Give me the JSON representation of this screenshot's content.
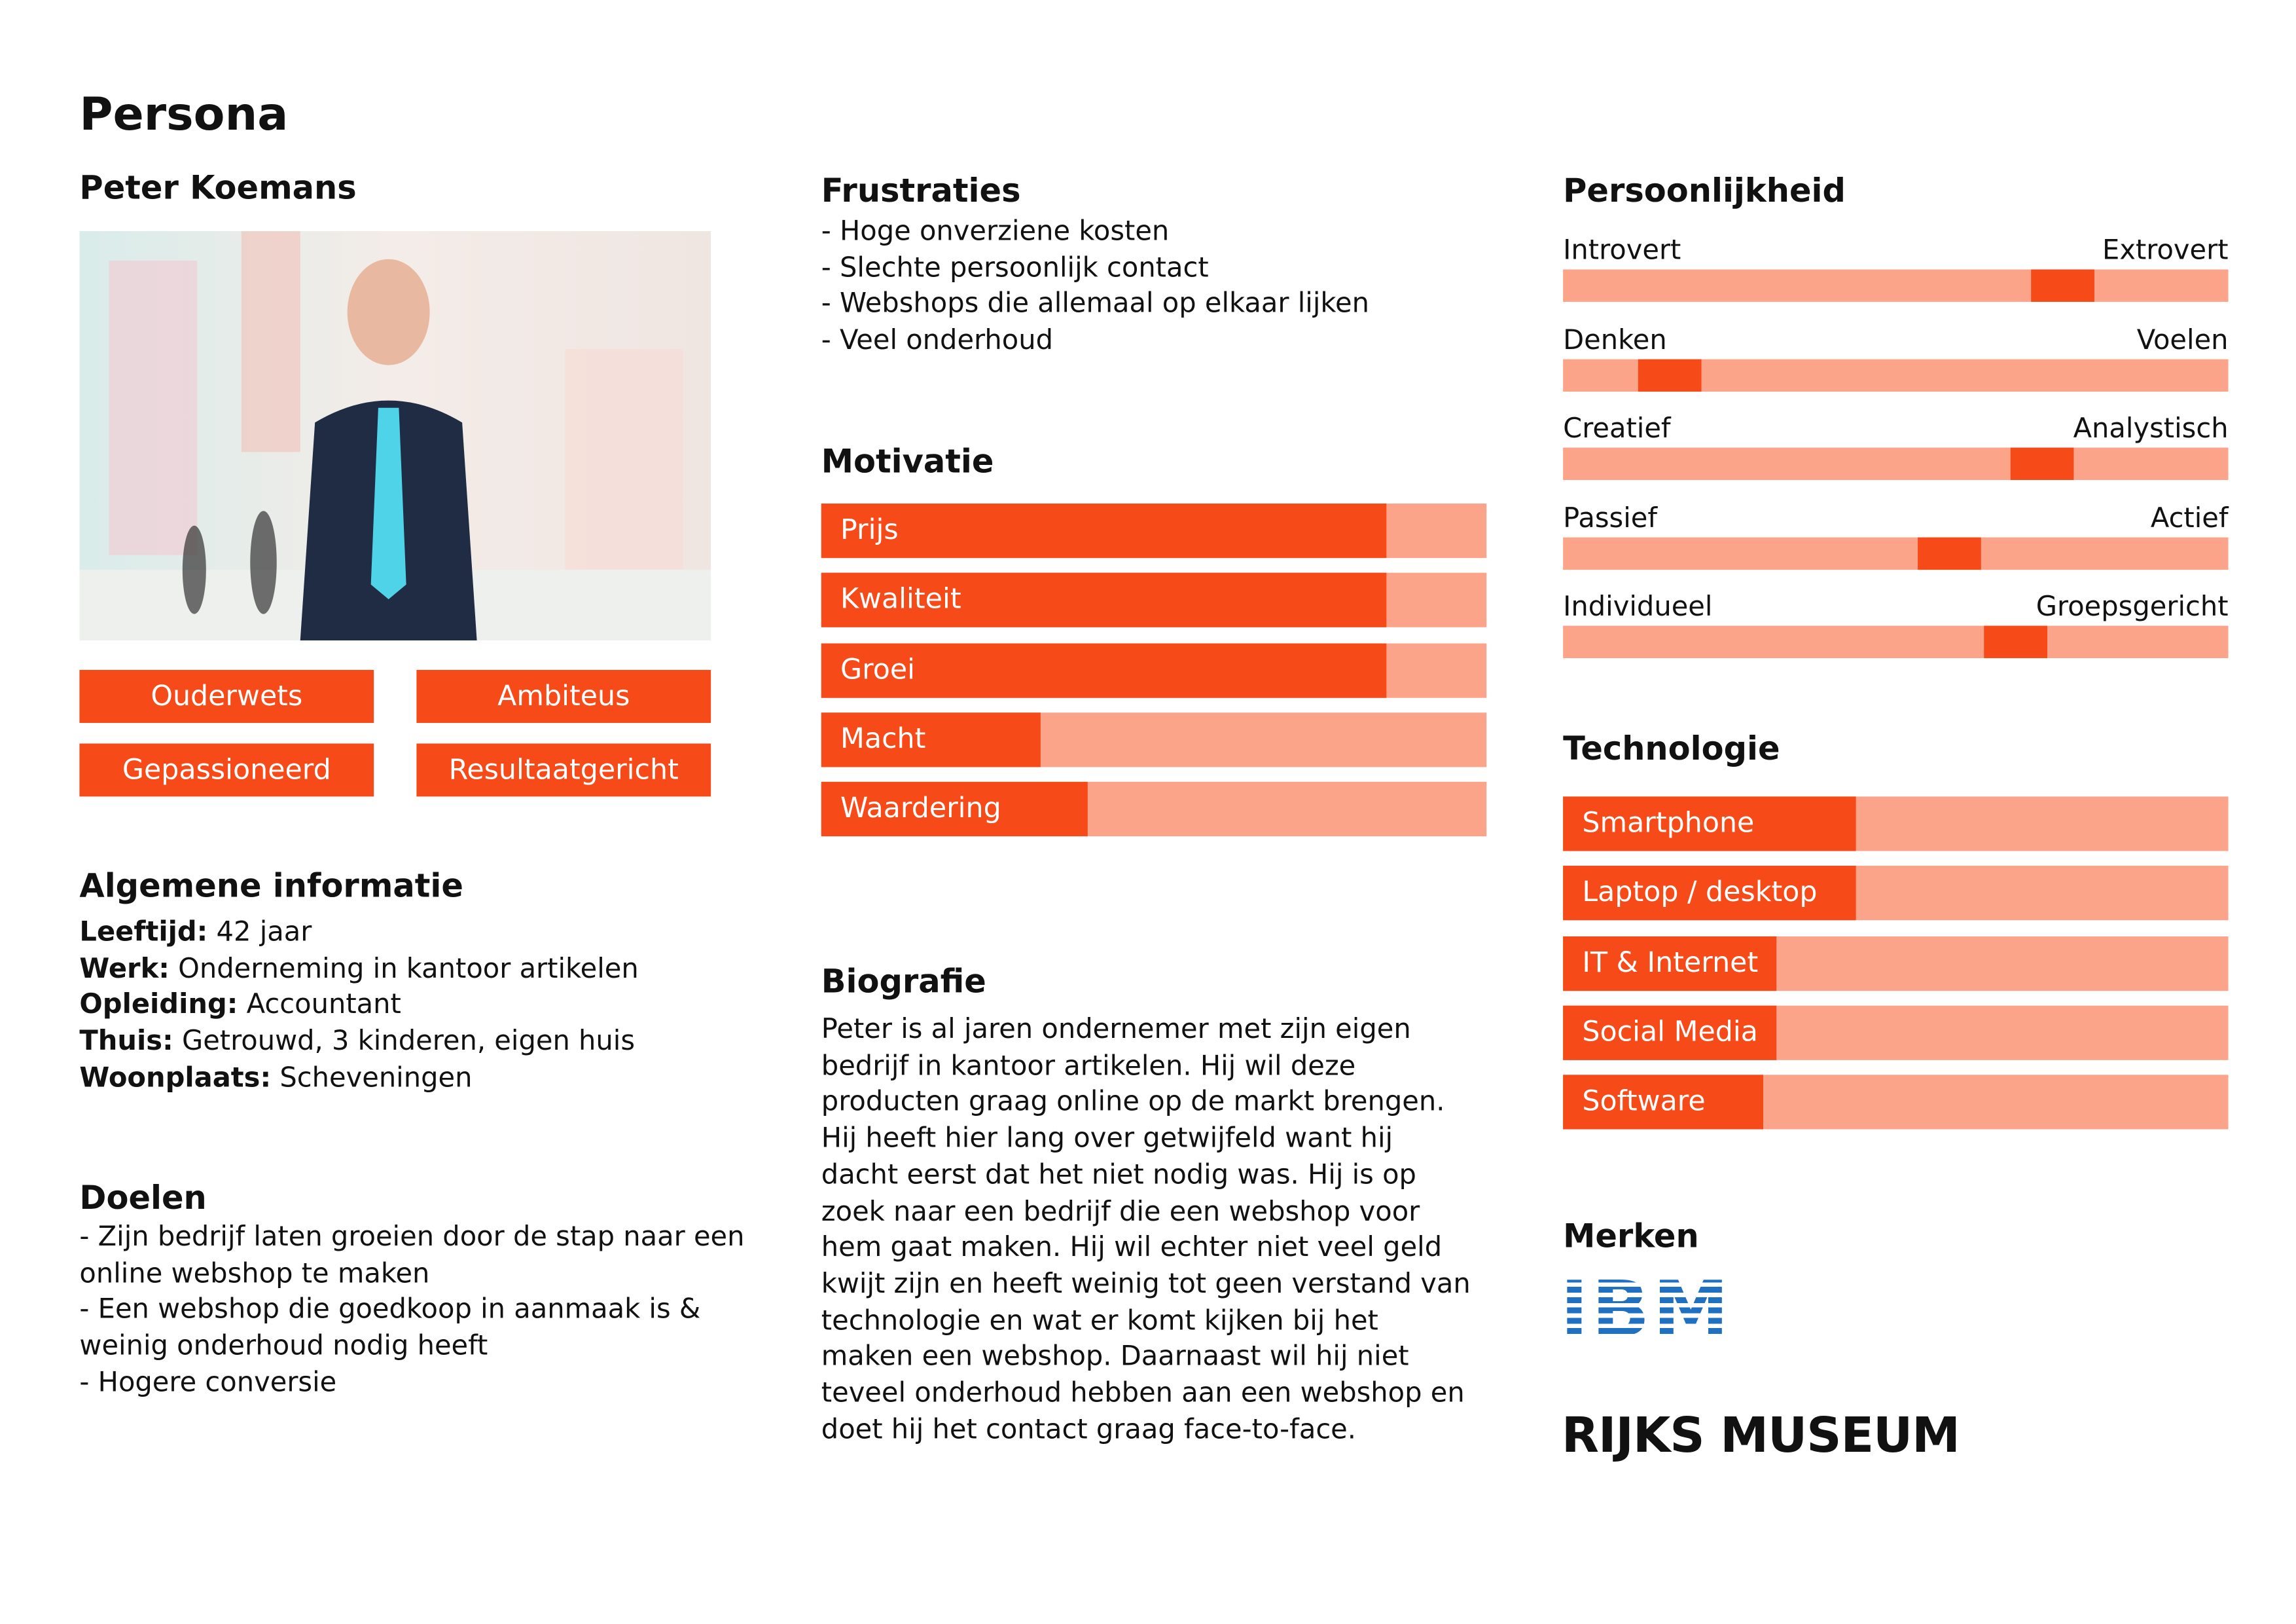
{
  "header": {
    "title": "Persona"
  },
  "profile": {
    "name": "Peter Koemans",
    "traits": [
      "Ouderwets",
      "Ambiteus",
      "Gepassioneerd",
      "Resultaatgericht"
    ]
  },
  "general_info": {
    "title": "Algemene informatie",
    "items": [
      {
        "label": "Leeftijd:",
        "value": "42 jaar"
      },
      {
        "label": "Werk:",
        "value": "Onderneming in kantoor artikelen"
      },
      {
        "label": "Opleiding:",
        "value": "Accountant"
      },
      {
        "label": "Thuis:",
        "value": "Getrouwd, 3 kinderen, eigen huis"
      },
      {
        "label": "Woonplaats:",
        "value": "Scheveningen"
      }
    ]
  },
  "goals": {
    "title": "Doelen",
    "items": [
      "- Zijn bedrijf laten groeien door de stap naar een online webshop te maken",
      "- Een webshop die goedkoop in aanmaak is & weinig onderhoud nodig heeft",
      "- Hogere conversie"
    ]
  },
  "frustrations": {
    "title": "Frustraties",
    "items": [
      "- Hoge onverziene kosten",
      "- Slechte persoonlijk contact",
      "- Webshops die allemaal op elkaar lijken",
      "- Veel onderhoud"
    ]
  },
  "motivation": {
    "title": "Motivatie",
    "categories": [
      "Prijs",
      "Kwaliteit",
      "Groei",
      "Macht",
      "Waardering"
    ],
    "values": [
      0.85,
      0.85,
      0.85,
      0.33,
      0.4
    ]
  },
  "biography": {
    "title": "Biografie",
    "text": "Peter is al jaren ondernemer met zijn eigen bedrijf in kantoor artikelen. Hij wil deze producten graag online op de markt brengen. Hij heeft hier lang over getwijfeld want hij dacht eerst dat het niet nodig was. Hij is op zoek naar een bedrijf die een webshop voor hem gaat maken. Hij wil echter niet veel geld kwijt zijn en heeft weinig tot geen verstand van technologie en wat er komt kijken bij het maken een webshop. Daarnaast wil hij niet teveel onderhoud hebben aan een webshop en doet hij het contact graag face-to-face."
  },
  "personality": {
    "title": "Persoonlijkheid",
    "scales": [
      {
        "left": "Introvert",
        "right": "Extrovert",
        "value": 0.75
      },
      {
        "left": "Denken",
        "right": "Voelen",
        "value": 0.16
      },
      {
        "left": "Creatief",
        "right": "Analystisch",
        "value": 0.72
      },
      {
        "left": "Passief",
        "right": "Actief",
        "value": 0.58
      },
      {
        "left": "Individueel",
        "right": "Groepsgericht",
        "value": 0.68
      }
    ]
  },
  "technology": {
    "title": "Technologie",
    "categories": [
      "Smartphone",
      "Laptop / desktop",
      "IT & Internet",
      "Social Media",
      "Software"
    ],
    "values": [
      0.44,
      0.44,
      0.32,
      0.32,
      0.3
    ]
  },
  "brands": {
    "title": "Merken",
    "items": [
      "IBM",
      "RIJKS MUSEUM"
    ]
  }
}
